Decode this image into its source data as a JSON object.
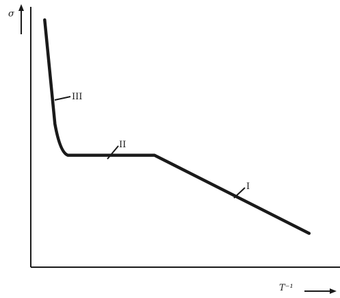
{
  "chart_data": {
    "type": "line",
    "title": "",
    "ylabel": "σ",
    "xlabel": "T⁻¹",
    "xlim": [
      0,
      10
    ],
    "ylim": [
      0,
      10
    ],
    "grid": false,
    "legend": "none",
    "series": [
      {
        "x": [
          0.45,
          0.78,
          0.95,
          1.2,
          2.5,
          3.9,
          4.0,
          9.0
        ],
        "y": [
          9.5,
          5.5,
          4.4,
          4.3,
          4.3,
          4.3,
          4.3,
          1.3
        ]
      }
    ],
    "annotations": [
      {
        "text": "III",
        "x": 0.7,
        "y": 6.6
      },
      {
        "text": "II",
        "x": 2.4,
        "y": 4.3
      },
      {
        "text": "I",
        "x": 6.1,
        "y": 2.6
      }
    ]
  }
}
